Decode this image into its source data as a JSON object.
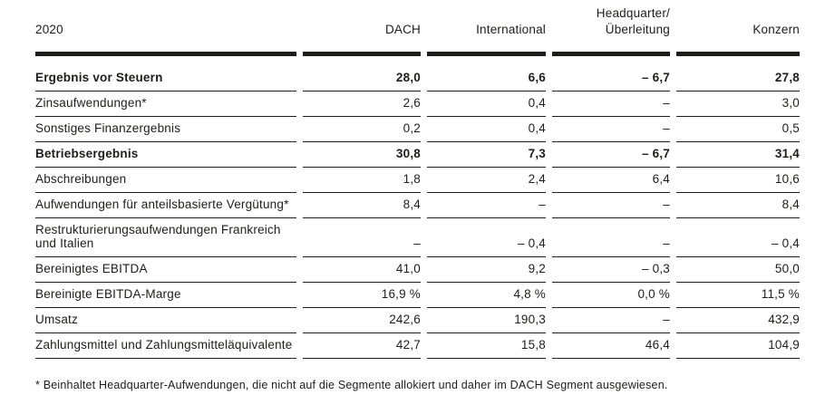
{
  "table": {
    "year": "2020",
    "columns": [
      "DACH",
      "International",
      "Headquarter/\nÜberleitung",
      "Konzern"
    ],
    "rows": [
      {
        "label": "Ergebnis vor Steuern",
        "bold": true,
        "values": [
          "28,0",
          "6,6",
          "– 6,7",
          "27,8"
        ]
      },
      {
        "label": "Zinsaufwendungen*",
        "bold": false,
        "values": [
          "2,6",
          "0,4",
          "–",
          "3,0"
        ]
      },
      {
        "label": "Sonstiges Finanzergebnis",
        "bold": false,
        "values": [
          "0,2",
          "0,4",
          "–",
          "0,5"
        ]
      },
      {
        "label": "Betriebsergebnis",
        "bold": true,
        "values": [
          "30,8",
          "7,3",
          "– 6,7",
          "31,4"
        ]
      },
      {
        "label": "Abschreibungen",
        "bold": false,
        "values": [
          "1,8",
          "2,4",
          "6,4",
          "10,6"
        ]
      },
      {
        "label": "Aufwendungen für anteilsbasierte Vergütung*",
        "bold": false,
        "values": [
          "8,4",
          "–",
          "–",
          "8,4"
        ]
      },
      {
        "label": "Restrukturierungsaufwendungen Frankreich und Italien",
        "bold": false,
        "values": [
          "–",
          "– 0,4",
          "–",
          "– 0,4"
        ]
      },
      {
        "label": "Bereinigtes EBITDA",
        "bold": false,
        "values": [
          "41,0",
          "9,2",
          "– 0,3",
          "50,0"
        ]
      },
      {
        "label": "Bereinigte EBITDA-Marge",
        "bold": false,
        "values": [
          "16,9 %",
          "4,8 %",
          "0,0 %",
          "11,5 %"
        ]
      },
      {
        "label": "Umsatz",
        "bold": false,
        "values": [
          "242,6",
          "190,3",
          "–",
          "432,9"
        ]
      },
      {
        "label": "Zahlungsmittel und Zahlungsmitteläquivalente",
        "bold": false,
        "values": [
          "42,7",
          "15,8",
          "46,4",
          "104,9"
        ]
      }
    ],
    "footnote": "* Beinhaltet Headquarter-Aufwendungen, die nicht auf die Segmente allokiert und daher im DACH Segment ausgewiesen."
  },
  "colors": {
    "text": "#1d1d1b",
    "rule": "#1d1d1b",
    "background": "#ffffff"
  }
}
